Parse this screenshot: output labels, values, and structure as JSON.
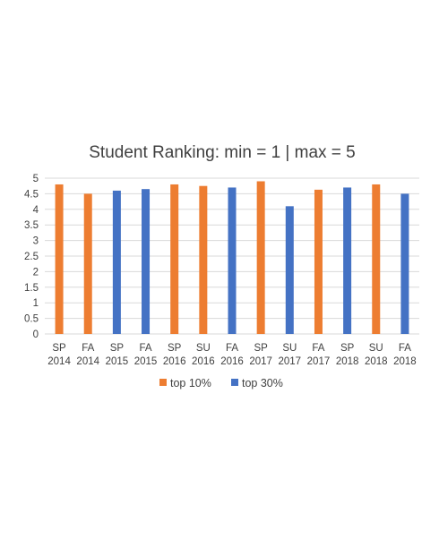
{
  "chart_data": {
    "type": "bar",
    "title": "Student Ranking: min = 1 | max = 5",
    "xlabel": "",
    "ylabel": "",
    "ylim": [
      0,
      5
    ],
    "yticks": [
      "0",
      "0.5",
      "1",
      "1.5",
      "2",
      "2.5",
      "3",
      "3.5",
      "4",
      "4.5",
      "5"
    ],
    "categories": [
      [
        "SP",
        "2014"
      ],
      [
        "FA",
        "2014"
      ],
      [
        "SP",
        "2015"
      ],
      [
        "FA",
        "2015"
      ],
      [
        "SP",
        "2016"
      ],
      [
        "SU",
        "2016"
      ],
      [
        "FA",
        "2016"
      ],
      [
        "SP",
        "2017"
      ],
      [
        "SU",
        "2017"
      ],
      [
        "FA",
        "2017"
      ],
      [
        "SP",
        "2018"
      ],
      [
        "SU",
        "2018"
      ],
      [
        "FA",
        "2018"
      ]
    ],
    "values": [
      4.8,
      4.5,
      4.6,
      4.65,
      4.8,
      4.75,
      4.7,
      4.9,
      4.1,
      4.63,
      4.7,
      4.8,
      4.5
    ],
    "group": [
      "top 10%",
      "top 10%",
      "top 30%",
      "top 30%",
      "top 10%",
      "top 10%",
      "top 30%",
      "top 10%",
      "top 30%",
      "top 10%",
      "top 30%",
      "top 10%",
      "top 30%"
    ],
    "legend": [
      {
        "name": "top 10%",
        "color": "#ED7D31"
      },
      {
        "name": "top 30%",
        "color": "#4472C4"
      }
    ],
    "legend_position": "bottom",
    "grid": true
  }
}
